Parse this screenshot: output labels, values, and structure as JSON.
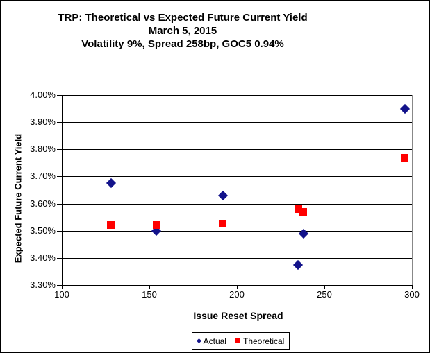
{
  "chart_data": {
    "type": "scatter",
    "title": "TRP: Theoretical vs Expected Future Current Yield",
    "subtitle_date": "March 5, 2015",
    "subtitle_params": "Volatility 9%, Spread 258bp, GOC5 0.94%",
    "xlabel": "Issue Reset Spread",
    "ylabel": "Expected Future Current Yield",
    "xlim": [
      100,
      300
    ],
    "ylim": [
      3.3,
      4.0
    ],
    "grid": "horizontal",
    "legend_position": "bottom",
    "x_ticks": [
      {
        "value": 100,
        "label": "100"
      },
      {
        "value": 150,
        "label": "150"
      },
      {
        "value": 200,
        "label": "200"
      },
      {
        "value": 250,
        "label": "250"
      },
      {
        "value": 300,
        "label": "300"
      }
    ],
    "y_ticks": [
      {
        "value": 4.0,
        "label": "4.00%"
      },
      {
        "value": 3.9,
        "label": "3.90%"
      },
      {
        "value": 3.8,
        "label": "3.80%"
      },
      {
        "value": 3.7,
        "label": "3.70%"
      },
      {
        "value": 3.6,
        "label": "3.60%"
      },
      {
        "value": 3.5,
        "label": "3.50%"
      },
      {
        "value": 3.4,
        "label": "3.40%"
      },
      {
        "value": 3.3,
        "label": "3.30%"
      }
    ],
    "series": [
      {
        "name": "Actual",
        "marker": "diamond",
        "color": "#13138B",
        "points": [
          {
            "x": 128,
            "y": 3.675
          },
          {
            "x": 154,
            "y": 3.5
          },
          {
            "x": 192,
            "y": 3.63
          },
          {
            "x": 235,
            "y": 3.375
          },
          {
            "x": 238,
            "y": 3.49
          },
          {
            "x": 296,
            "y": 3.95
          }
        ]
      },
      {
        "name": "Theoretical",
        "marker": "square",
        "color": "#FF0000",
        "points": [
          {
            "x": 128,
            "y": 3.52
          },
          {
            "x": 154,
            "y": 3.52
          },
          {
            "x": 192,
            "y": 3.525
          },
          {
            "x": 235,
            "y": 3.58
          },
          {
            "x": 238,
            "y": 3.57
          },
          {
            "x": 296,
            "y": 3.77
          }
        ]
      }
    ],
    "colors": {
      "grid": "#000000",
      "plot_right_border": "#888888",
      "text": "#000000"
    }
  }
}
